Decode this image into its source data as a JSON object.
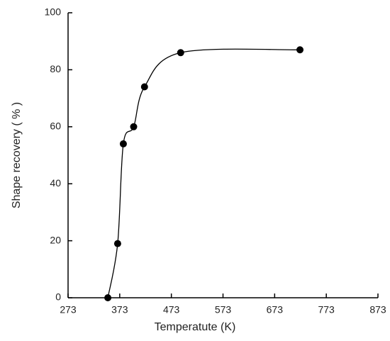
{
  "chart_data": {
    "type": "line",
    "x_label": "Temperatute (K)",
    "y_label": "Shape recovery ( % )",
    "x": [
      350,
      369,
      380,
      400,
      421,
      491,
      722
    ],
    "series": [
      {
        "color": "#000000",
        "values": [
          0,
          19,
          54,
          60,
          74,
          86,
          87
        ]
      }
    ],
    "xlim": [
      273,
      873
    ],
    "xticks": [
      273,
      373,
      473,
      573,
      673,
      773,
      873
    ],
    "ylim": [
      0,
      100
    ],
    "yticks": [
      0,
      20,
      40,
      60,
      80,
      100
    ],
    "grid": false
  }
}
